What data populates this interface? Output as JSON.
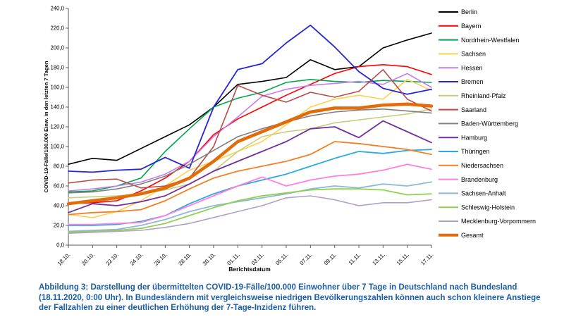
{
  "caption": {
    "text": "Abbildung 3: Darstellung der übermittelten COVID-19-Fälle/100.000 Einwohner über 7 Tage in Deutschland nach Bundesland (18.11.2020, 0:00 Uhr). In Bundesländern mit vergleichsweise niedrigen Bevölkerungszahlen können auch schon kleinere Anstiege der Fallzahlen zu einer deutlichen Erhöhung der 7-Tage-Inzidenz führen.",
    "color": "#1A5DA6"
  },
  "chart_data": {
    "type": "line",
    "title": "",
    "xlabel": "Berichtsdatum",
    "ylabel": "COVID-19-Fälle/100.000 Einw. in den letzten 7 Tagen",
    "x_tick_labels": [
      "18.10.",
      "20.10.",
      "22.10.",
      "24.10.",
      "26.10.",
      "28.10.",
      "30.10.",
      "01.11.",
      "03.11.",
      "05.11.",
      "07.11.",
      "09.11.",
      "11.11.",
      "13.11.",
      "15.11.",
      "17.11."
    ],
    "y_tick_labels": [
      "0,0",
      "20,0",
      "40,0",
      "60,0",
      "80,0",
      "100,0",
      "120,0",
      "140,0",
      "160,0",
      "180,0",
      "200,0",
      "220,0",
      "240,0"
    ],
    "ylim": [
      0,
      240
    ],
    "y_tick_step": 20,
    "grid": false,
    "legend_position": "right",
    "series": [
      {
        "name": "Berlin",
        "color": "#000000",
        "width": 1.6,
        "values": [
          82,
          88,
          86,
          98,
          110,
          122,
          140,
          163,
          166,
          170,
          188,
          178,
          181,
          200,
          208,
          215
        ]
      },
      {
        "name": "Bayern",
        "color": "#FF0000",
        "width": 1.6,
        "values": [
          42,
          43,
          45,
          55,
          68,
          85,
          112,
          128,
          140,
          152,
          163,
          174,
          181,
          183,
          181,
          173
        ]
      },
      {
        "name": "Nordrhein-Westfalen",
        "color": "#00A550",
        "width": 1.6,
        "values": [
          54,
          55,
          60,
          68,
          95,
          118,
          140,
          149,
          155,
          165,
          168,
          166,
          165,
          167,
          166,
          165
        ]
      },
      {
        "name": "Sachsen",
        "color": "#FFD24C",
        "width": 1.6,
        "values": [
          31,
          28,
          34,
          45,
          60,
          76,
          85,
          95,
          105,
          122,
          140,
          148,
          152,
          148,
          168,
          157
        ]
      },
      {
        "name": "Hessen",
        "color": "#C77DF0",
        "width": 1.6,
        "values": [
          55,
          57,
          60,
          64,
          72,
          85,
          110,
          130,
          151,
          158,
          162,
          164,
          166,
          163,
          174,
          160
        ]
      },
      {
        "name": "Bremen",
        "color": "#2525D8",
        "width": 1.8,
        "values": [
          75,
          74,
          76,
          77,
          89,
          78,
          140,
          178,
          184,
          205,
          223,
          201,
          176,
          159,
          153,
          158
        ]
      },
      {
        "name": "Rheinland-Pfalz",
        "color": "#C9CC7E",
        "width": 1.6,
        "values": [
          48,
          49,
          50,
          52,
          56,
          62,
          75,
          95,
          110,
          115,
          118,
          124,
          127,
          130,
          133,
          138
        ]
      },
      {
        "name": "Saarland",
        "color": "#B94A48",
        "width": 1.6,
        "values": [
          63,
          66,
          67,
          58,
          60,
          68,
          100,
          162,
          152,
          145,
          155,
          150,
          156,
          178,
          148,
          136
        ]
      },
      {
        "name": "Baden-Württemberg",
        "color": "#808080",
        "width": 1.6,
        "values": [
          53,
          54,
          57,
          62,
          70,
          82,
          96,
          110,
          118,
          125,
          131,
          135,
          137,
          138,
          136,
          134
        ]
      },
      {
        "name": "Hamburg",
        "color": "#7030A0",
        "width": 1.8,
        "values": [
          33,
          42,
          40,
          44,
          50,
          62,
          75,
          85,
          95,
          105,
          118,
          120,
          109,
          126,
          115,
          104
        ]
      },
      {
        "name": "Thüringen",
        "color": "#29ABE2",
        "width": 1.8,
        "values": [
          20,
          20,
          21,
          24,
          30,
          42,
          52,
          60,
          66,
          72,
          80,
          88,
          95,
          93,
          96,
          97
        ]
      },
      {
        "name": "Niedersachsen",
        "color": "#F28024",
        "width": 1.8,
        "values": [
          31,
          33,
          34,
          36,
          45,
          57,
          68,
          75,
          80,
          85,
          92,
          105,
          103,
          100,
          97,
          92
        ]
      },
      {
        "name": "Brandenburg",
        "color": "#FF80DD",
        "width": 1.8,
        "values": [
          21,
          21,
          22,
          23,
          30,
          40,
          50,
          60,
          69,
          60,
          66,
          70,
          72,
          76,
          82,
          77
        ]
      },
      {
        "name": "Sachsen-Anhalt",
        "color": "#8FB8D8",
        "width": 1.8,
        "values": [
          14,
          15,
          16,
          20,
          26,
          34,
          40,
          44,
          48,
          52,
          57,
          60,
          58,
          62,
          60,
          64
        ]
      },
      {
        "name": "Schleswig-Holstein",
        "color": "#92D050",
        "width": 1.8,
        "values": [
          13,
          14,
          15,
          17,
          22,
          30,
          38,
          45,
          50,
          53,
          56,
          57,
          57,
          56,
          51,
          52
        ]
      },
      {
        "name": "Mecklenburg-Vorpommern",
        "color": "#B1A0C7",
        "width": 1.6,
        "values": [
          12,
          13,
          14,
          15,
          18,
          22,
          28,
          34,
          40,
          48,
          50,
          46,
          40,
          43,
          43,
          46
        ]
      },
      {
        "name": "Gesamt",
        "color": "#E36C0A",
        "width": 4.5,
        "values": [
          42,
          45,
          48,
          52,
          58,
          68,
          85,
          105,
          115,
          125,
          135,
          139,
          139,
          142,
          143,
          141
        ]
      }
    ]
  }
}
